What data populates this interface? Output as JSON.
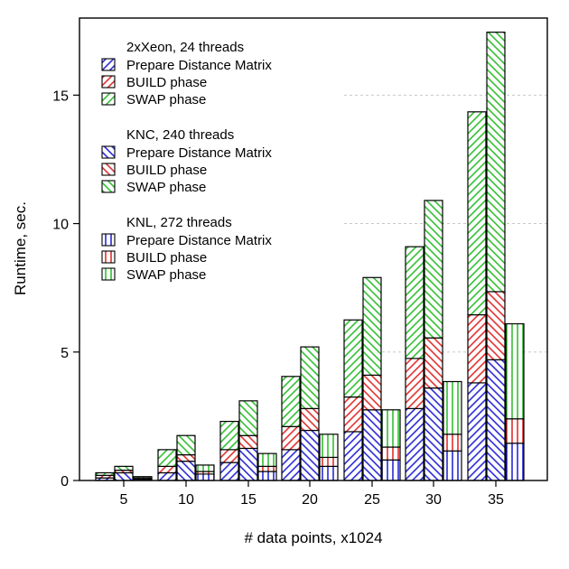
{
  "chart_data": {
    "type": "bar",
    "stacked": true,
    "grouped": true,
    "xlabel": "# data points, x1024",
    "ylabel": "Runtime, sec.",
    "ylim": [
      0,
      18
    ],
    "yticks": [
      0,
      5,
      10,
      15
    ],
    "grid": "horizontal dashed",
    "legend_position": "top-left",
    "categories": [
      "5",
      "10",
      "15",
      "20",
      "25",
      "30",
      "35"
    ],
    "components": [
      {
        "name": "Prepare Distance Matrix",
        "color": "#1a1ad6"
      },
      {
        "name": "BUILD phase",
        "color": "#e02020"
      },
      {
        "name": "SWAP phase",
        "color": "#22bb22"
      }
    ],
    "groups": [
      {
        "name": "2xXeon, 24 threads",
        "pattern": "backslash",
        "series": [
          {
            "name": "Prepare Distance Matrix",
            "values": [
              0.1,
              0.3,
              0.7,
              1.2,
              1.9,
              2.8,
              3.8
            ]
          },
          {
            "name": "BUILD phase",
            "values": [
              0.1,
              0.25,
              0.5,
              0.9,
              1.35,
              1.95,
              2.65
            ]
          },
          {
            "name": "SWAP phase",
            "values": [
              0.1,
              0.65,
              1.1,
              1.95,
              3.0,
              4.35,
              7.9
            ]
          }
        ]
      },
      {
        "name": "KNC, 240 threads",
        "pattern": "slash",
        "series": [
          {
            "name": "Prepare Distance Matrix",
            "values": [
              0.3,
              0.75,
              1.25,
              1.95,
              2.75,
              3.6,
              4.7
            ]
          },
          {
            "name": "BUILD phase",
            "values": [
              0.1,
              0.25,
              0.5,
              0.85,
              1.35,
              1.95,
              2.65
            ]
          },
          {
            "name": "SWAP phase",
            "values": [
              0.15,
              0.75,
              1.35,
              2.4,
              3.8,
              5.35,
              10.1
            ]
          }
        ]
      },
      {
        "name": "KNL, 272 threads",
        "pattern": "vertical",
        "series": [
          {
            "name": "Prepare Distance Matrix",
            "values": [
              0.05,
              0.25,
              0.35,
              0.55,
              0.8,
              1.15,
              1.45
            ]
          },
          {
            "name": "BUILD phase",
            "values": [
              0.05,
              0.1,
              0.2,
              0.35,
              0.5,
              0.65,
              0.95
            ]
          },
          {
            "name": "SWAP phase",
            "values": [
              0.05,
              0.25,
              0.5,
              0.9,
              1.45,
              2.05,
              3.7
            ]
          }
        ]
      }
    ]
  }
}
